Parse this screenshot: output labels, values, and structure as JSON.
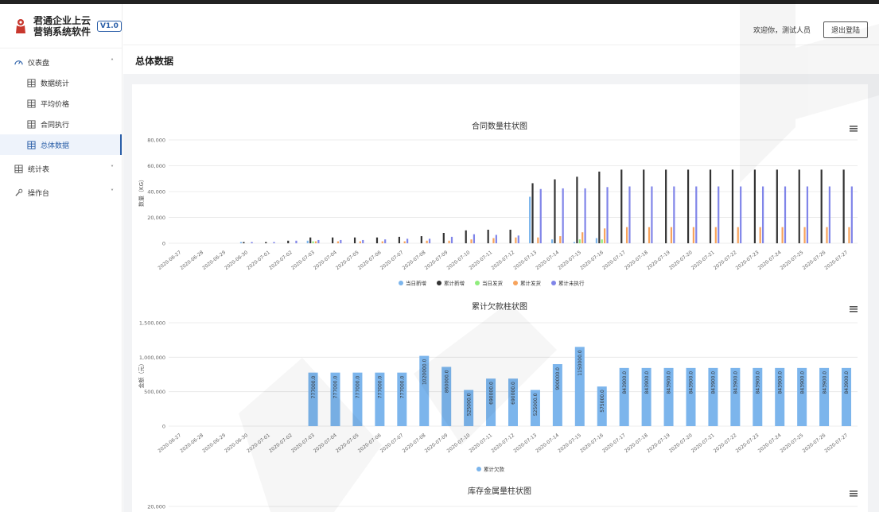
{
  "brand": {
    "line1": "君通企业上云",
    "line2": "营销系统软件",
    "version": "V1.0"
  },
  "sidebar": {
    "groups": [
      {
        "label": "仪表盘",
        "caret": "˄"
      },
      {
        "label": "统计表",
        "caret": "˅"
      },
      {
        "label": "操作台",
        "caret": "˅"
      }
    ],
    "items": [
      {
        "label": "数据统计"
      },
      {
        "label": "平均价格"
      },
      {
        "label": "合同执行"
      },
      {
        "label": "总体数据",
        "active": true
      }
    ]
  },
  "header": {
    "welcome": "欢迎你，测试人员",
    "logout": "退出登陆"
  },
  "page": {
    "title": "总体数据"
  },
  "colors": {
    "accent": "#2b5fa8",
    "blue": "#7cb5ec",
    "black": "#333333",
    "green": "#90ed7d",
    "orange": "#f7a35c",
    "purple": "#8085e9"
  },
  "chart_data": [
    {
      "type": "bar",
      "title": "合同数量柱状图",
      "ylabel": "数量（KG）",
      "ylim": [
        0,
        80000
      ],
      "yticks": [
        "80,000",
        "60,000",
        "40,000",
        "20,000",
        "0"
      ],
      "legend_position": "bottom",
      "categories": [
        "2020-06-27",
        "2020-06-28",
        "2020-06-29",
        "2020-06-30",
        "2020-07-01",
        "2020-07-02",
        "2020-07-03",
        "2020-07-04",
        "2020-07-05",
        "2020-07-06",
        "2020-07-07",
        "2020-07-08",
        "2020-07-09",
        "2020-07-10",
        "2020-07-11",
        "2020-07-12",
        "2020-07-13",
        "2020-07-14",
        "2020-07-15",
        "2020-07-16",
        "2020-07-17",
        "2020-07-18",
        "2020-07-19",
        "2020-07-20",
        "2020-07-21",
        "2020-07-22",
        "2020-07-23",
        "2020-07-24",
        "2020-07-25",
        "2020-07-26",
        "2020-07-27"
      ],
      "series": [
        {
          "name": "当日新增",
          "color": "#7cb5ec",
          "values": [
            0,
            0,
            0,
            1000,
            0,
            0,
            2000,
            0,
            0,
            0,
            0,
            0,
            0,
            0,
            0,
            0,
            36000,
            3000,
            1000,
            4000,
            0,
            0,
            0,
            0,
            0,
            0,
            0,
            0,
            0,
            0,
            0
          ]
        },
        {
          "name": "累计新增",
          "color": "#333333",
          "values": [
            0,
            0,
            0,
            1000,
            1000,
            2000,
            4500,
            4500,
            4500,
            4500,
            5000,
            5500,
            8000,
            10000,
            10500,
            10500,
            46500,
            49500,
            51500,
            55500,
            57000,
            57000,
            57000,
            57000,
            57000,
            57000,
            57000,
            57000,
            57000,
            57000,
            57000
          ]
        },
        {
          "name": "当日发货",
          "color": "#90ed7d",
          "values": [
            0,
            0,
            0,
            0,
            0,
            0,
            1500,
            0,
            0,
            0,
            0,
            0,
            0,
            0,
            0,
            0,
            0,
            0,
            3000,
            3000,
            0,
            0,
            0,
            0,
            0,
            0,
            0,
            0,
            0,
            0,
            0
          ]
        },
        {
          "name": "累计发货",
          "color": "#f7a35c",
          "values": [
            0,
            0,
            0,
            0,
            0,
            0,
            1500,
            1500,
            1500,
            1500,
            1500,
            2000,
            2000,
            3000,
            4000,
            4500,
            4500,
            5500,
            8500,
            11500,
            12500,
            12500,
            12500,
            12500,
            12500,
            12500,
            12500,
            12500,
            12500,
            12500,
            12500
          ]
        },
        {
          "name": "累计未执行",
          "color": "#8085e9",
          "values": [
            0,
            0,
            0,
            1000,
            1000,
            2000,
            2500,
            2500,
            2500,
            3000,
            3500,
            3500,
            5000,
            7000,
            6500,
            6000,
            42000,
            42500,
            42500,
            43500,
            44000,
            44000,
            44000,
            44000,
            44000,
            44000,
            44000,
            44000,
            44000,
            44000,
            44000
          ]
        }
      ]
    },
    {
      "type": "bar",
      "title": "累计欠款柱状图",
      "ylabel": "金额（元）",
      "ylim": [
        0,
        1500000
      ],
      "yticks": [
        "1,500,000",
        "1,000,000",
        "500,000",
        "0"
      ],
      "legend_position": "bottom",
      "categories": [
        "2020-06-27",
        "2020-06-28",
        "2020-06-29",
        "2020-06-30",
        "2020-07-01",
        "2020-07-02",
        "2020-07-03",
        "2020-07-04",
        "2020-07-05",
        "2020-07-06",
        "2020-07-07",
        "2020-07-08",
        "2020-07-09",
        "2020-07-10",
        "2020-07-11",
        "2020-07-12",
        "2020-07-13",
        "2020-07-14",
        "2020-07-15",
        "2020-07-16",
        "2020-07-17",
        "2020-07-18",
        "2020-07-19",
        "2020-07-20",
        "2020-07-21",
        "2020-07-22",
        "2020-07-23",
        "2020-07-24",
        "2020-07-25",
        "2020-07-26",
        "2020-07-27"
      ],
      "series": [
        {
          "name": "累计欠款",
          "color": "#7cb5ec",
          "values": [
            0,
            0,
            0,
            0,
            0,
            0,
            777000,
            777000,
            777000,
            777000,
            777000,
            1020000,
            860000,
            525000,
            690000,
            690000,
            525000,
            900000,
            1150000,
            575000,
            843900,
            843900,
            843900,
            843900,
            843900,
            843900,
            843900,
            843900,
            843900,
            843900,
            843900
          ],
          "labels": [
            "",
            "",
            "",
            "",
            "",
            "",
            "777000.0",
            "777000.0",
            "777000.0",
            "777000.0",
            "777000.0",
            "1020000.0",
            "860000.0",
            "525000.0",
            "690000.0",
            "690000.0",
            "525000.0",
            "900000.0",
            "1150000.0",
            "575000.0",
            "843900.0",
            "843900.0",
            "843900.0",
            "843900.0",
            "843900.0",
            "843900.0",
            "843900.0",
            "843900.0",
            "843900.0",
            "843900.0",
            "843900.0"
          ]
        }
      ]
    },
    {
      "type": "bar",
      "title": "库存金属量柱状图",
      "ylabel": "",
      "ylim": [
        0,
        20000
      ],
      "yticks": [
        "20,000"
      ],
      "legend_position": "bottom",
      "categories": [],
      "series": []
    }
  ]
}
